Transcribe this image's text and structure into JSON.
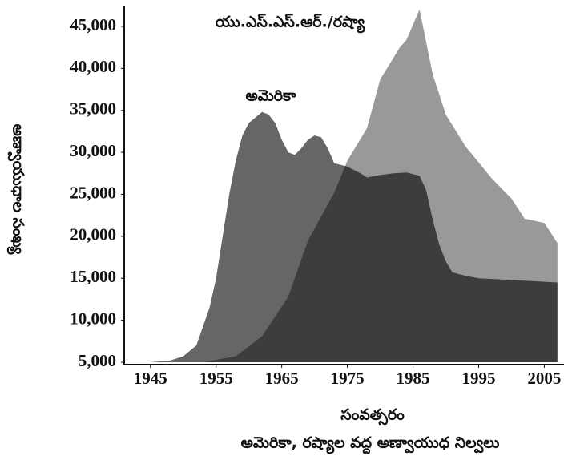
{
  "chart_data": {
    "type": "area",
    "title": "అమెరికా, రష్యాల వద్ద అణ్వాయుధ నిల్వలు",
    "x_label": "సంవత్సరం",
    "y_label": "అణ్వాయుధాల సంఖ్య",
    "xlim": [
      1941,
      2008
    ],
    "xticks": [
      1945,
      1955,
      1965,
      1975,
      1985,
      1995,
      2005
    ],
    "ylim": [
      5000,
      47000
    ],
    "yticks": [
      {
        "value": 5000,
        "label": "5,000"
      },
      {
        "value": 10000,
        "label": "10,000"
      },
      {
        "value": 15000,
        "label": "15,000"
      },
      {
        "value": 20000,
        "label": "20,000"
      },
      {
        "value": 25000,
        "label": "25,000"
      },
      {
        "value": 30000,
        "label": "30,000"
      },
      {
        "value": 35000,
        "label": "35,000"
      },
      {
        "value": 40000,
        "label": "40,000"
      },
      {
        "value": 45000,
        "label": "45,000"
      }
    ],
    "series": [
      {
        "name": "యు.ఎస్.ఎస్.ఆర్./రష్యా",
        "color": "#999999",
        "x": [
          1953,
          1958,
          1962,
          1966,
          1969,
          1973,
          1975,
          1978,
          1980,
          1983,
          1984,
          1986,
          1988,
          1990,
          1993,
          1995,
          1997,
          2000,
          2002,
          2005,
          2007
        ],
        "values": [
          5000,
          5700,
          8100,
          12800,
          19500,
          25200,
          29000,
          32900,
          38700,
          42500,
          43400,
          47000,
          39300,
          34500,
          30700,
          28800,
          26900,
          24500,
          22100,
          21600,
          19200
        ]
      },
      {
        "name": "అమెరికా",
        "color": "#666666",
        "x": [
          1945,
          1948,
          1950,
          1952,
          1954,
          1955,
          1956,
          1957,
          1958,
          1959,
          1960,
          1962,
          1963,
          1964,
          1965,
          1966,
          1967,
          1968,
          1969,
          1970,
          1971,
          1972,
          1973,
          1974,
          1975,
          1977,
          1978,
          1980,
          1982,
          1984,
          1986,
          1987,
          1988,
          1989,
          1990,
          1991,
          1993,
          1995,
          2000,
          2007
        ],
        "values": [
          5000,
          5200,
          5700,
          7000,
          11500,
          15000,
          20000,
          25000,
          29000,
          32000,
          33500,
          34800,
          34500,
          33500,
          31500,
          30000,
          29700,
          30500,
          31500,
          32000,
          31800,
          30500,
          28700,
          28500,
          28300,
          27500,
          27000,
          27300,
          27500,
          27600,
          27200,
          25500,
          22000,
          19000,
          17000,
          15700,
          15300,
          15000,
          14800,
          14500
        ]
      }
    ]
  }
}
